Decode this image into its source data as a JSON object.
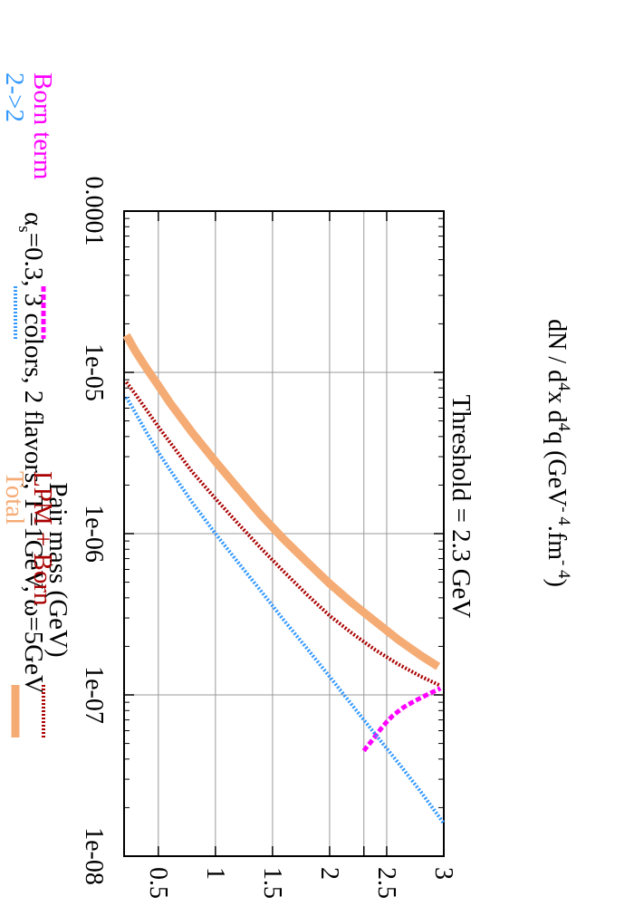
{
  "chart_data": {
    "type": "line",
    "title": "Threshold = 2.3 GeV",
    "header": {
      "alpha_symbol": "α",
      "alpha_sub": "s",
      "rest": "=0.3, 3 colors, 2 flavors, T=1GeV, ω=5GeV"
    },
    "xlabel": "Pair mass (GeV)",
    "ylabel": {
      "parts": [
        {
          "t": "dN / d"
        },
        {
          "t": "4",
          "sup": true
        },
        {
          "t": "x d"
        },
        {
          "t": "4",
          "sup": true
        },
        {
          "t": "q (GeV"
        },
        {
          "t": "- 4",
          "sup": true
        },
        {
          "t": ".fm"
        },
        {
          "t": "- 4",
          "sup": true
        },
        {
          "t": ")"
        }
      ]
    },
    "xlim": [
      0.2,
      3.0
    ],
    "ylim": [
      1e-08,
      0.0001
    ],
    "yscale": "log",
    "x_ticks": [
      {
        "v": 0.5,
        "label": "0.5"
      },
      {
        "v": 1,
        "label": "1"
      },
      {
        "v": 1.5,
        "label": "1.5"
      },
      {
        "v": 2,
        "label": "2"
      },
      {
        "v": 2.5,
        "label": "2.5"
      },
      {
        "v": 3,
        "label": "3"
      }
    ],
    "y_ticks": [
      {
        "v": 0.0001,
        "label": "0.0001"
      },
      {
        "v": 1e-05,
        "label": "1e-05"
      },
      {
        "v": 1e-06,
        "label": "1e-06"
      },
      {
        "v": 1e-07,
        "label": "1e-07"
      },
      {
        "v": 1e-08,
        "label": "1e-08"
      }
    ],
    "grid": true,
    "extra_gridline_x": 2.3,
    "series": [
      {
        "name": "Born term",
        "color": "#ff00ff",
        "style": "dashed",
        "x": [
          2.3,
          2.31,
          2.33,
          2.35,
          2.38,
          2.42,
          2.46,
          2.5,
          2.55,
          2.6,
          2.65,
          2.7,
          2.75,
          2.8,
          2.85,
          2.9,
          2.95,
          2.97
        ],
        "y": [
          4.5e-08,
          4.6e-08,
          4.8e-08,
          5e-08,
          5.3e-08,
          5.8e-08,
          6.3e-08,
          6.8e-08,
          7.4e-08,
          7.9e-08,
          8.4e-08,
          8.8e-08,
          9.2e-08,
          9.6e-08,
          1e-07,
          1.04e-07,
          1.08e-07,
          1.1e-07
        ]
      },
      {
        "name": "2->2",
        "color": "#3399ff",
        "style": "dotted",
        "x": [
          0.22,
          0.3,
          0.4,
          0.5,
          0.6,
          0.8,
          1.0,
          1.2,
          1.4,
          1.6,
          1.8,
          2.0,
          2.2,
          2.4,
          2.6,
          2.8,
          3.0
        ],
        "y": [
          7e-06,
          5.6e-06,
          4.2e-06,
          3.2e-06,
          2.5e-06,
          1.55e-06,
          1e-06,
          6.6e-07,
          4.4e-07,
          2.9e-07,
          1.95e-07,
          1.3e-07,
          8.6e-08,
          5.7e-08,
          3.8e-08,
          2.5e-08,
          1.6e-08
        ]
      },
      {
        "name": "LPM + Born",
        "color": "#aa0000",
        "style": "dotted",
        "x": [
          0.22,
          0.3,
          0.4,
          0.5,
          0.6,
          0.8,
          1.0,
          1.2,
          1.4,
          1.6,
          1.8,
          2.0,
          2.2,
          2.4,
          2.6,
          2.8,
          2.96
        ],
        "y": [
          8.7e-06,
          7.3e-06,
          5.8e-06,
          4.6e-06,
          3.7e-06,
          2.4e-06,
          1.65e-06,
          1.15e-06,
          8.1e-07,
          5.8e-07,
          4.2e-07,
          3.1e-07,
          2.4e-07,
          1.9e-07,
          1.55e-07,
          1.3e-07,
          1.15e-07
        ]
      },
      {
        "name": "Total",
        "color": "#f5ab74",
        "style": "solid",
        "x": [
          0.22,
          0.3,
          0.4,
          0.5,
          0.6,
          0.8,
          1.0,
          1.2,
          1.4,
          1.6,
          1.8,
          2.0,
          2.2,
          2.4,
          2.6,
          2.8,
          2.95
        ],
        "y": [
          1.7e-05,
          1.35e-05,
          1.05e-05,
          8.3e-06,
          6.5e-06,
          4.2e-06,
          2.8e-06,
          1.9e-06,
          1.3e-06,
          9.2e-07,
          6.7e-07,
          4.9e-07,
          3.7e-07,
          2.85e-07,
          2.2e-07,
          1.75e-07,
          1.5e-07
        ]
      }
    ],
    "legend_placement": "bottom",
    "legend_layout": [
      {
        "series": 0,
        "col": 0,
        "row": 0
      },
      {
        "series": 1,
        "col": 0,
        "row": 1
      },
      {
        "series": 2,
        "col": 1,
        "row": 0
      },
      {
        "series": 3,
        "col": 1,
        "row": 1
      }
    ],
    "rotation": "rotated 90 degrees counter-clockwise"
  }
}
